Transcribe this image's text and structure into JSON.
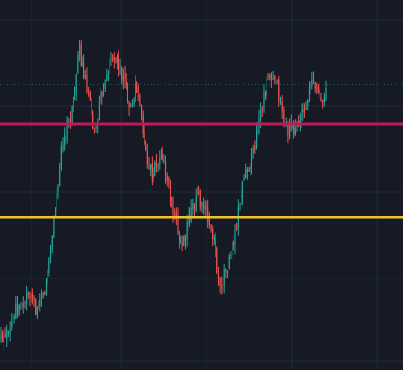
{
  "chart_data": {
    "type": "candlestick",
    "title": "",
    "xlabel": "",
    "ylabel": "",
    "grid": true,
    "ylim": [
      0,
      412
    ],
    "candle_count": 216,
    "colors": {
      "background": "#161a25",
      "grid": "#232837",
      "up": "#26a69a",
      "down": "#ef5350",
      "price_line": "#26a69a",
      "resistance": "#c2185b",
      "support": "#f0c030"
    },
    "levels": [
      {
        "id": "resistance-line",
        "value": 274,
        "color": "#c2185b"
      },
      {
        "id": "support-line",
        "value": 170,
        "color": "#f0c030"
      }
    ],
    "current_price_line": {
      "value": 318,
      "color": "#26a69a"
    },
    "path_anchors": [
      [
        0,
        35
      ],
      [
        10,
        65
      ],
      [
        18,
        80
      ],
      [
        25,
        65
      ],
      [
        30,
        95
      ],
      [
        40,
        240
      ],
      [
        47,
        290
      ],
      [
        52,
        355
      ],
      [
        56,
        320
      ],
      [
        62,
        265
      ],
      [
        70,
        335
      ],
      [
        75,
        350
      ],
      [
        80,
        330
      ],
      [
        86,
        295
      ],
      [
        90,
        320
      ],
      [
        95,
        250
      ],
      [
        100,
        218
      ],
      [
        107,
        238
      ],
      [
        115,
        165
      ],
      [
        120,
        140
      ],
      [
        125,
        170
      ],
      [
        130,
        198
      ],
      [
        137,
        170
      ],
      [
        141,
        142
      ],
      [
        145,
        90
      ],
      [
        150,
        115
      ],
      [
        155,
        150
      ],
      [
        160,
        210
      ],
      [
        167,
        242
      ],
      [
        172,
        292
      ],
      [
        177,
        325
      ],
      [
        183,
        315
      ],
      [
        187,
        275
      ],
      [
        193,
        265
      ],
      [
        200,
        285
      ],
      [
        206,
        320
      ],
      [
        212,
        305
      ],
      [
        216,
        312
      ]
    ]
  }
}
